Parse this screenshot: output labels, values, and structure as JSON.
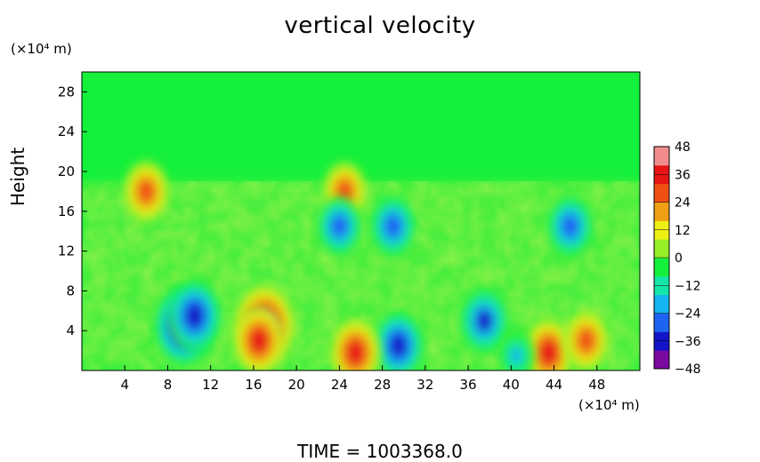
{
  "chart_data": {
    "type": "heatmap",
    "title": "vertical velocity",
    "ylabel": "Height",
    "x_unit": "(×10⁴ m)",
    "y_unit": "(×10⁴ m)",
    "xlim": [
      0,
      52
    ],
    "ylim": [
      0,
      30
    ],
    "x_ticks": [
      4,
      8,
      12,
      16,
      20,
      24,
      28,
      32,
      36,
      40,
      44,
      48
    ],
    "y_ticks": [
      4,
      8,
      12,
      16,
      20,
      24,
      28
    ],
    "colorbar": {
      "range": [
        -48,
        48
      ],
      "ticks": [
        48,
        36,
        24,
        12,
        0,
        -12,
        -24,
        -36,
        -48
      ],
      "tick_labels": [
        "48",
        "36",
        "24",
        "12",
        "0",
        "−12",
        "−24",
        "−36",
        "−48"
      ],
      "colors": [
        "#7a0aa0",
        "#1414c8",
        "#1e64f0",
        "#14b4f0",
        "#14e6aa",
        "#14f03c",
        "#96ee28",
        "#eef014",
        "#f0a014",
        "#f05014",
        "#e61414",
        "#f08c8c"
      ]
    },
    "features": [
      {
        "x": 9.5,
        "y": 4.5,
        "value": -46
      },
      {
        "x": 10.5,
        "y": 5.5,
        "value": -40
      },
      {
        "x": 29.5,
        "y": 2.5,
        "value": -36
      },
      {
        "x": 37.5,
        "y": 5.0,
        "value": -34
      },
      {
        "x": 17.0,
        "y": 4.5,
        "value": 48
      },
      {
        "x": 16.5,
        "y": 3.0,
        "value": 36
      },
      {
        "x": 25.5,
        "y": 1.8,
        "value": 36
      },
      {
        "x": 43.5,
        "y": 1.8,
        "value": 36
      },
      {
        "x": 47.0,
        "y": 3.0,
        "value": 30
      },
      {
        "x": 6.0,
        "y": 18.0,
        "value": 30
      },
      {
        "x": 24.5,
        "y": 18.0,
        "value": 28
      },
      {
        "x": 29.0,
        "y": 14.5,
        "value": -30
      },
      {
        "x": 45.5,
        "y": 14.5,
        "value": -30
      },
      {
        "x": 24.0,
        "y": 14.5,
        "value": -28
      },
      {
        "x": 40.5,
        "y": 1.5,
        "value": -18
      }
    ],
    "time_label": "TIME  =  1003368.0"
  }
}
